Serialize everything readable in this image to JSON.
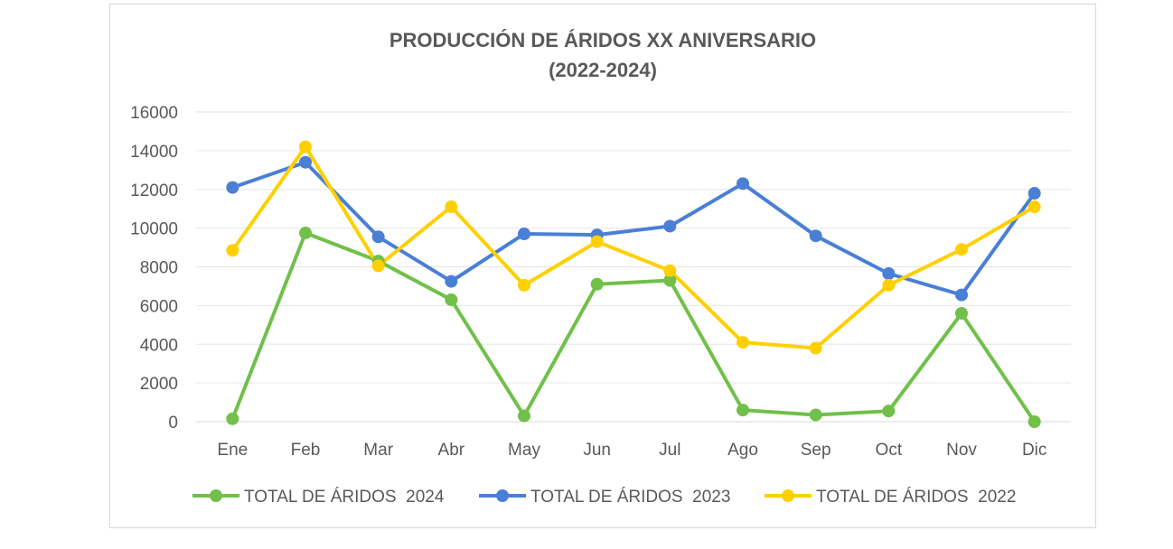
{
  "chart_data": {
    "type": "line",
    "title": "PRODUCCIÓN DE ÁRIDOS XX ANIVERSARIO",
    "subtitle": "(2022-2024)",
    "categories": [
      "Ene",
      "Feb",
      "Mar",
      "Abr",
      "May",
      "Jun",
      "Jul",
      "Ago",
      "Sep",
      "Oct",
      "Nov",
      "Dic"
    ],
    "ylim": [
      0,
      16000
    ],
    "yticks": [
      "0",
      "2000",
      "4000",
      "6000",
      "8000",
      "10000",
      "12000",
      "14000",
      "16000"
    ],
    "grid": true,
    "legend_position": "bottom",
    "series": [
      {
        "name": "TOTAL DE ÁRIDOS  2024",
        "color": "#70c04a",
        "values": [
          150,
          9750,
          8300,
          6300,
          300,
          7100,
          7300,
          600,
          350,
          550,
          5600,
          0
        ]
      },
      {
        "name": "TOTAL DE ÁRIDOS  2023",
        "color": "#4a7fd6",
        "values": [
          12100,
          13400,
          9550,
          7250,
          9700,
          9650,
          10100,
          12300,
          9600,
          7650,
          6550,
          11800
        ]
      },
      {
        "name": "TOTAL DE ÁRIDOS  2022",
        "color": "#ffd000",
        "values": [
          8850,
          14200,
          8050,
          11100,
          7050,
          9300,
          7800,
          4100,
          3800,
          7050,
          8900,
          11100
        ]
      }
    ]
  }
}
